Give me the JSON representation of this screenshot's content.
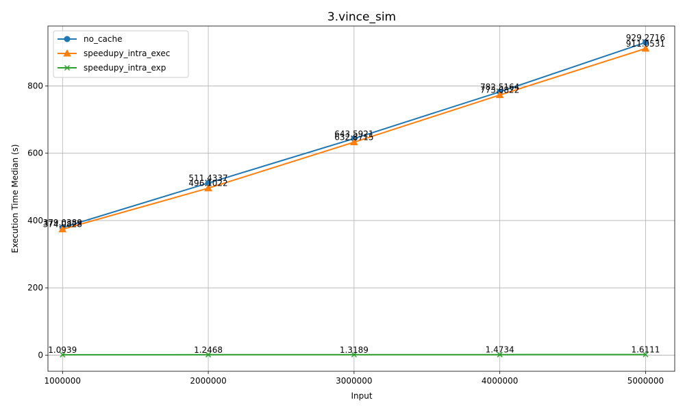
{
  "chart_data": {
    "type": "line",
    "title": "3.vince_sim",
    "xlabel": "Input",
    "ylabel": "Execution Time Median (s)",
    "x": [
      1000000,
      2000000,
      3000000,
      4000000,
      5000000
    ],
    "x_tick_labels": [
      "1000000",
      "2000000",
      "3000000",
      "4000000",
      "5000000"
    ],
    "y_ticks": [
      0,
      200,
      400,
      600,
      800
    ],
    "y_tick_labels": [
      "0",
      "200",
      "400",
      "600",
      "800"
    ],
    "xlim": [
      900000,
      5200000
    ],
    "ylim": [
      -48,
      978
    ],
    "grid": true,
    "legend_position": "top-left",
    "series": [
      {
        "name": "no_cache",
        "color": "#1f77b4",
        "marker": "circle",
        "values": [
          379.0389,
          511.4337,
          643.5921,
          782.5164,
          929.2716
        ],
        "labels": [
          "379.0389",
          "511.4337",
          "643.5921",
          "782.5164",
          "929.2716"
        ]
      },
      {
        "name": "speedupy_intra_exec",
        "color": "#ff7f0e",
        "marker": "triangle",
        "values": [
          374.0828,
          496.1022,
          632.8715,
          773.0822,
          911.0531
        ],
        "labels": [
          "374.0828",
          "496.1022",
          "632.8715",
          "773.0822",
          "911.0531"
        ]
      },
      {
        "name": "speedupy_intra_exp",
        "color": "#2ca02c",
        "marker": "x",
        "values": [
          1.0939,
          1.2468,
          1.3189,
          1.4734,
          1.6111
        ],
        "labels": [
          "1.0939",
          "1.2468",
          "1.3189",
          "1.4734",
          "1.6111"
        ]
      }
    ]
  }
}
